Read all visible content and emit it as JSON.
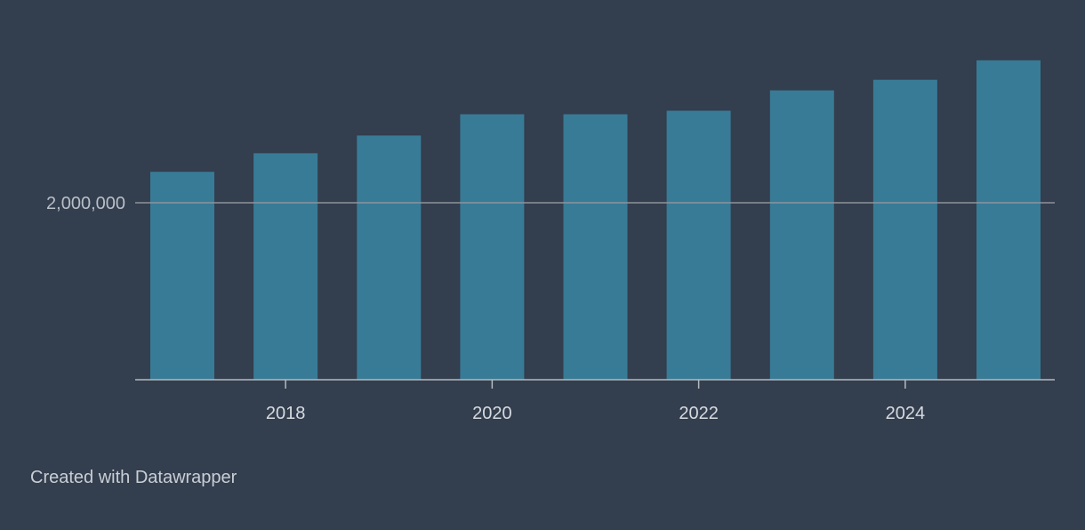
{
  "credit": "Created with Datawrapper",
  "colors": {
    "background": "#333e4e",
    "bar": "#387b96",
    "gridline": "#8d939b",
    "axis": "#b5bac1"
  },
  "chart_data": {
    "type": "bar",
    "title": "",
    "xlabel": "",
    "ylabel": "",
    "categories": [
      "2017",
      "2018",
      "2019",
      "2020",
      "2021",
      "2022",
      "2023",
      "2024",
      "2025"
    ],
    "x_tick_labels": [
      "2018",
      "2020",
      "2022",
      "2024"
    ],
    "y_tick_labels": [
      {
        "value": 2000000,
        "label": "2,000,000"
      }
    ],
    "values": [
      2350000,
      2560000,
      2760000,
      3000000,
      3000000,
      3040000,
      3270000,
      3390000,
      3610000
    ],
    "ylim": [
      0,
      4000000
    ],
    "grid": true,
    "legend": "none"
  }
}
